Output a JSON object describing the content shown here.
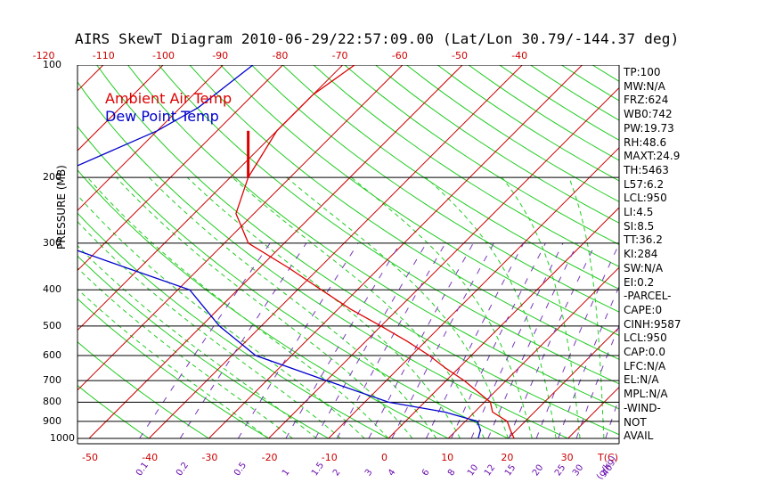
{
  "title": "AIRS SkewT Diagram 2010-06-29/22:57:09.00 (Lat/Lon 30.79/-144.37 deg)",
  "chart_data": {
    "type": "line",
    "title": "AIRS SkewT Diagram 2010-06-29/22:57:09.00 (Lat/Lon 30.79/-144.37 deg)",
    "ylabel": "PRESSURE (MB)",
    "xlabel": "T(C)",
    "y_log_scale": true,
    "pressure_ticks": [
      100,
      200,
      300,
      400,
      500,
      600,
      700,
      800,
      900,
      1000
    ],
    "top_temp_ticks": [
      -120,
      -110,
      -100,
      -90,
      -80,
      -70,
      -60,
      -50,
      -40
    ],
    "bottom_temp_ticks": [
      -50,
      -40,
      -30,
      -20,
      -10,
      0,
      10,
      20,
      30
    ],
    "bottom_temp_unit": "T(C)",
    "mixing_ratio_ticks": [
      "0.1",
      "0.2",
      "0.5",
      "1",
      "1.5",
      "2",
      "3",
      "4",
      "6",
      "8",
      "10",
      "12",
      "15",
      "20",
      "25",
      "30",
      "40"
    ],
    "mixing_ratio_unit": "(g/kg)",
    "series": [
      {
        "name": "Ambient Air Temp",
        "color": "#dd0000",
        "points": [
          [
            100,
            -68
          ],
          [
            120,
            -70
          ],
          [
            150,
            -70
          ],
          [
            200,
            -67
          ],
          [
            250,
            -63
          ],
          [
            300,
            -56
          ],
          [
            350,
            -45
          ],
          [
            400,
            -36
          ],
          [
            450,
            -28
          ],
          [
            500,
            -20
          ],
          [
            550,
            -13
          ],
          [
            600,
            -7
          ],
          [
            650,
            -2
          ],
          [
            700,
            3
          ],
          [
            800,
            11
          ],
          [
            850,
            13
          ],
          [
            900,
            17
          ],
          [
            950,
            19
          ],
          [
            1000,
            21
          ]
        ]
      },
      {
        "name": "Dew Point Temp",
        "color": "#0000cc",
        "points": [
          [
            100,
            -85
          ],
          [
            130,
            -87
          ],
          [
            150,
            -90
          ],
          [
            200,
            -100
          ],
          [
            250,
            -103
          ],
          [
            300,
            -88
          ],
          [
            350,
            -72
          ],
          [
            400,
            -58
          ],
          [
            500,
            -47
          ],
          [
            600,
            -36
          ],
          [
            700,
            -20
          ],
          [
            800,
            -6
          ],
          [
            850,
            5
          ],
          [
            900,
            12
          ],
          [
            950,
            14
          ],
          [
            1000,
            15
          ]
        ]
      }
    ],
    "highlight_segment": {
      "color": "#dd0000",
      "pressure_range": [
        150,
        200
      ],
      "temp": -67
    }
  },
  "legend": {
    "ambient": "Ambient Air Temp",
    "dewpoint": "Dew Point Temp",
    "ambient_color": "#dd0000",
    "dewpoint_color": "#0000cc"
  },
  "indices": [
    "TP:100",
    "MW:N/A",
    "FRZ:624",
    "WB0:742",
    "PW:19.73",
    "RH:48.6",
    "MAXT:24.9",
    "TH:5463",
    "L57:6.2",
    "LCL:950",
    "LI:4.5",
    "SI:8.5",
    "TT:36.2",
    "KI:284",
    "SW:N/A",
    "EI:0.2",
    "-PARCEL-",
    "CAPE:0",
    "CINH:9587",
    "LCL:950",
    "CAP:0.0",
    "LFC:N/A",
    "EL:N/A",
    "MPL:N/A",
    "-WIND-",
    "NOT",
    "AVAIL"
  ]
}
